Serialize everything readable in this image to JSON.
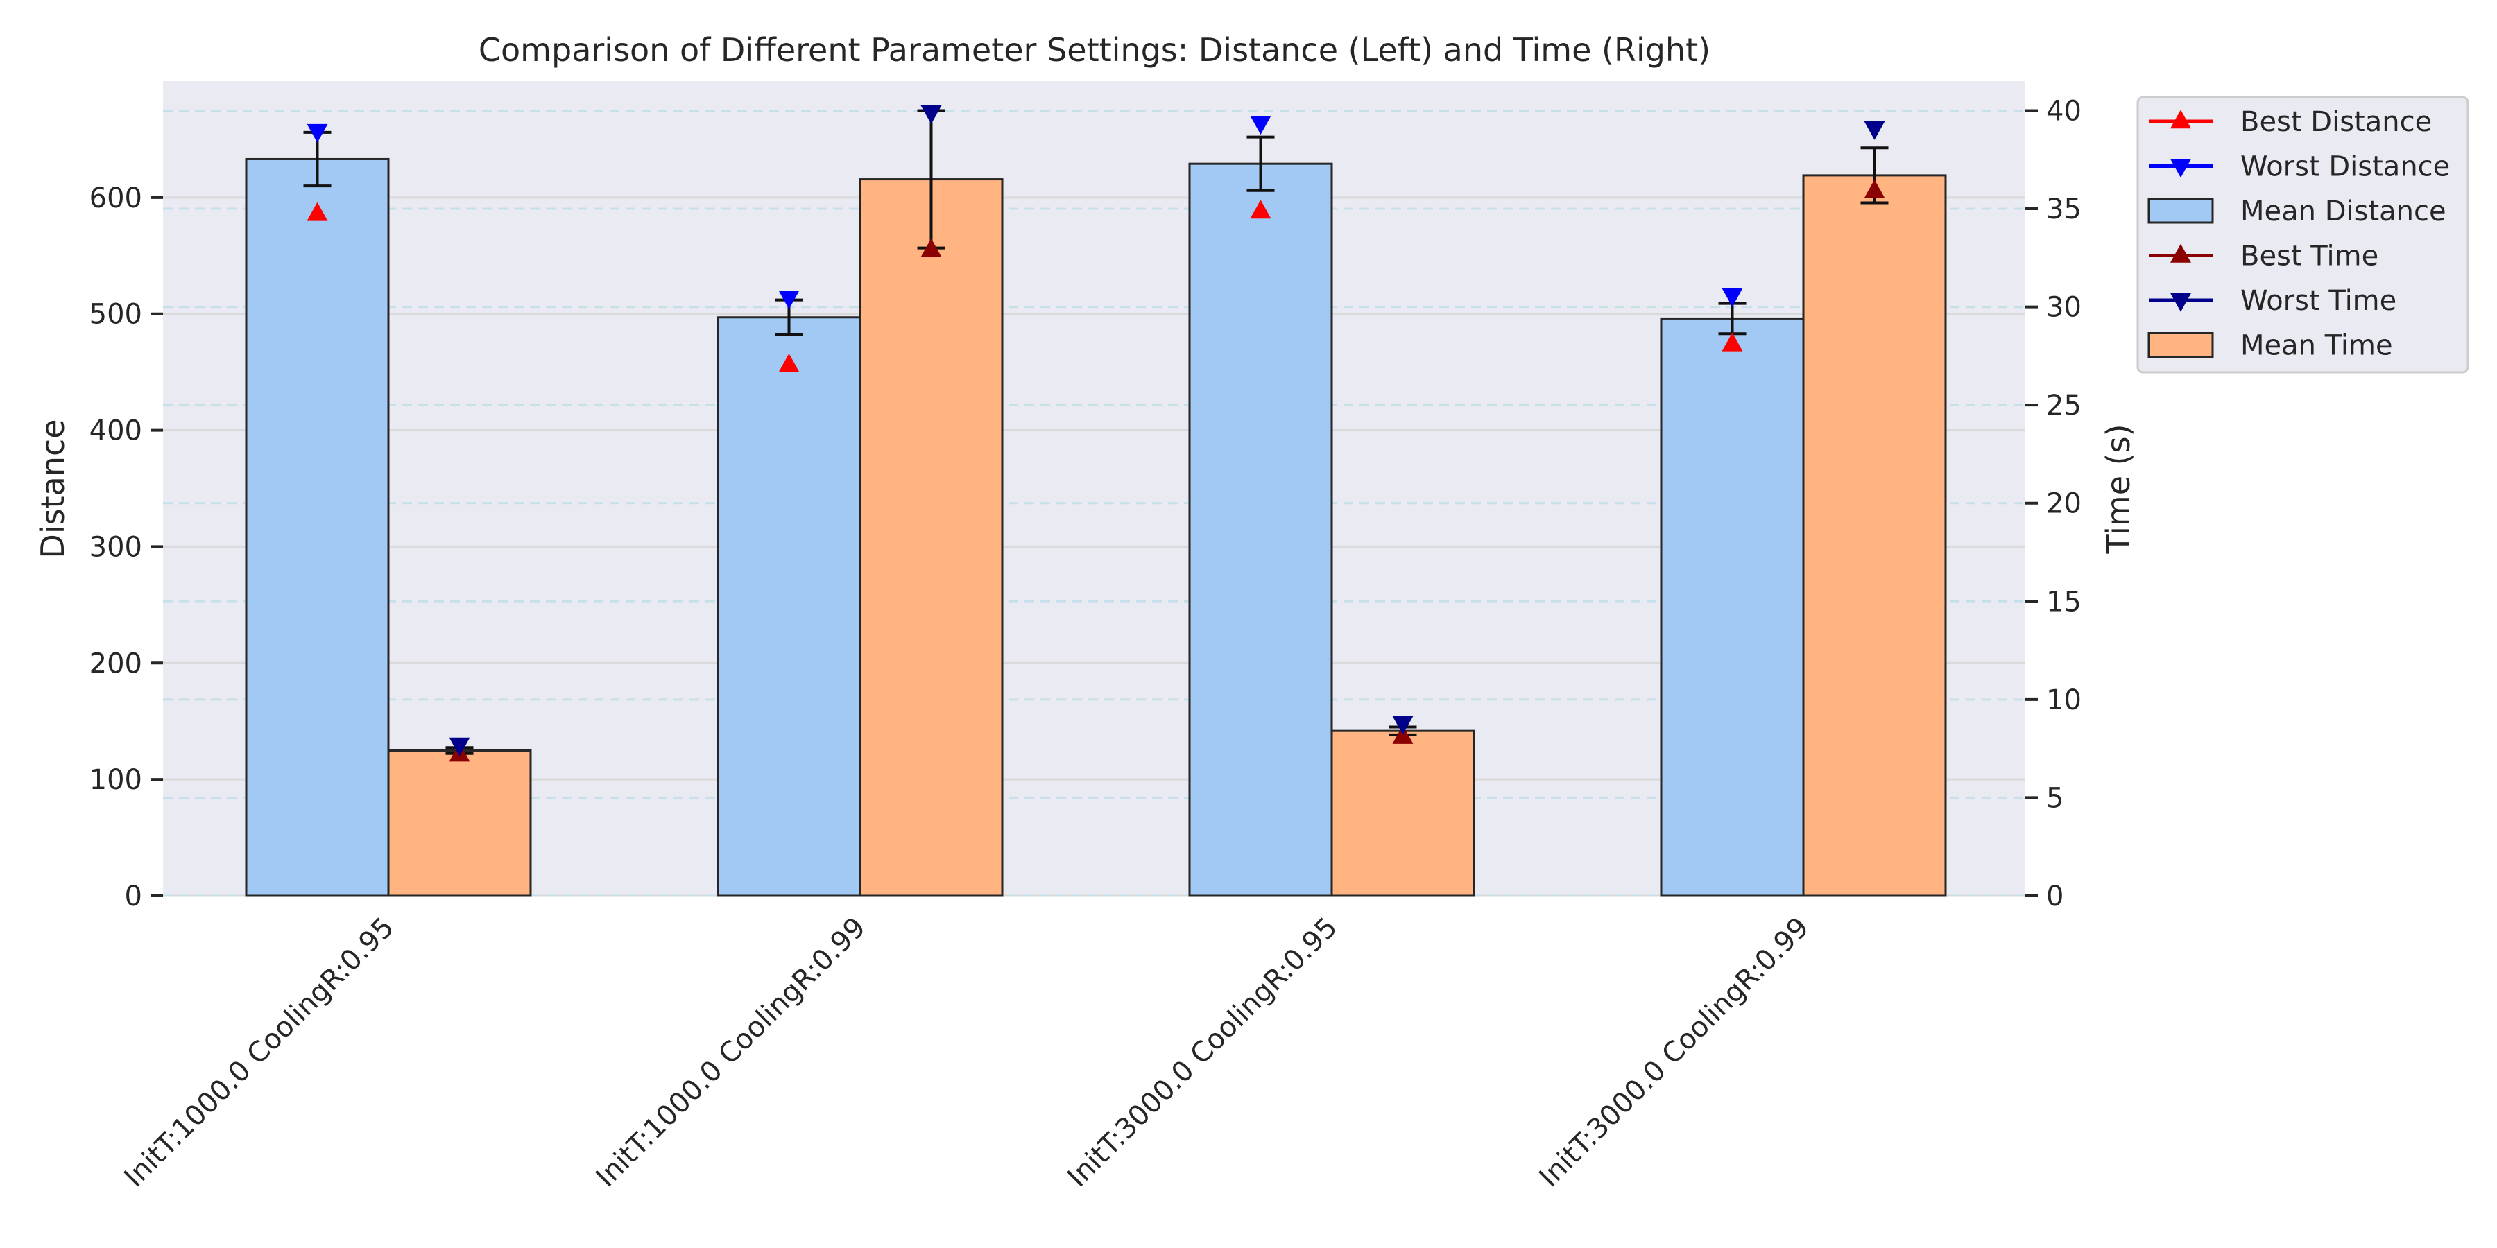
{
  "chart_data": {
    "type": "bar",
    "title": "Comparison of Different Parameter Settings: Distance (Left) and Time (Right)",
    "categories": [
      "InitT:1000.0 CoolingR:0.95",
      "InitT:1000.0 CoolingR:0.99",
      "InitT:3000.0 CoolingR:0.95",
      "InitT:3000.0 CoolingR:0.99"
    ],
    "left_axis": {
      "label": "Distance",
      "range": [
        0,
        700
      ],
      "ticks": [
        "0",
        "100",
        "200",
        "300",
        "400",
        "500",
        "600"
      ]
    },
    "right_axis": {
      "label": "Time (s)",
      "range": [
        0,
        41.5
      ],
      "ticks": [
        "0",
        "5",
        "10",
        "15",
        "20",
        "25",
        "30",
        "35",
        "40"
      ]
    },
    "series": [
      {
        "name": "Mean Distance",
        "axis": "left",
        "kind": "bar",
        "color": "#a1c9f4",
        "values": [
          633,
          497,
          629,
          496
        ],
        "error": [
          23,
          15,
          23,
          13
        ]
      },
      {
        "name": "Mean Time",
        "axis": "right",
        "kind": "bar",
        "color": "#ffb482",
        "values": [
          7.4,
          36.5,
          8.4,
          36.7
        ],
        "error": [
          0.15,
          3.5,
          0.2,
          1.4
        ]
      },
      {
        "name": "Best Distance",
        "axis": "left",
        "kind": "marker",
        "marker": "triangle-up",
        "color": "#ff0000",
        "values": [
          586,
          456,
          588,
          474
        ]
      },
      {
        "name": "Worst Distance",
        "axis": "left",
        "kind": "marker",
        "marker": "triangle-down",
        "color": "#0000ff",
        "values": [
          657,
          514,
          664,
          516
        ]
      },
      {
        "name": "Best Time",
        "axis": "right",
        "kind": "marker",
        "marker": "triangle-up",
        "color": "#8b0000",
        "values": [
          7.2,
          32.9,
          8.1,
          35.9
        ]
      },
      {
        "name": "Worst Time",
        "axis": "right",
        "kind": "marker",
        "marker": "triangle-down",
        "color": "#00008b",
        "values": [
          7.7,
          39.9,
          8.8,
          39.1
        ]
      }
    ],
    "legend": {
      "placement": "outside-top-right",
      "entries": [
        "Best Distance",
        "Worst Distance",
        "Mean Distance",
        "Best Time",
        "Worst Time",
        "Mean Time"
      ]
    },
    "grid": true,
    "style": {
      "background": "#eaeaf2"
    }
  }
}
